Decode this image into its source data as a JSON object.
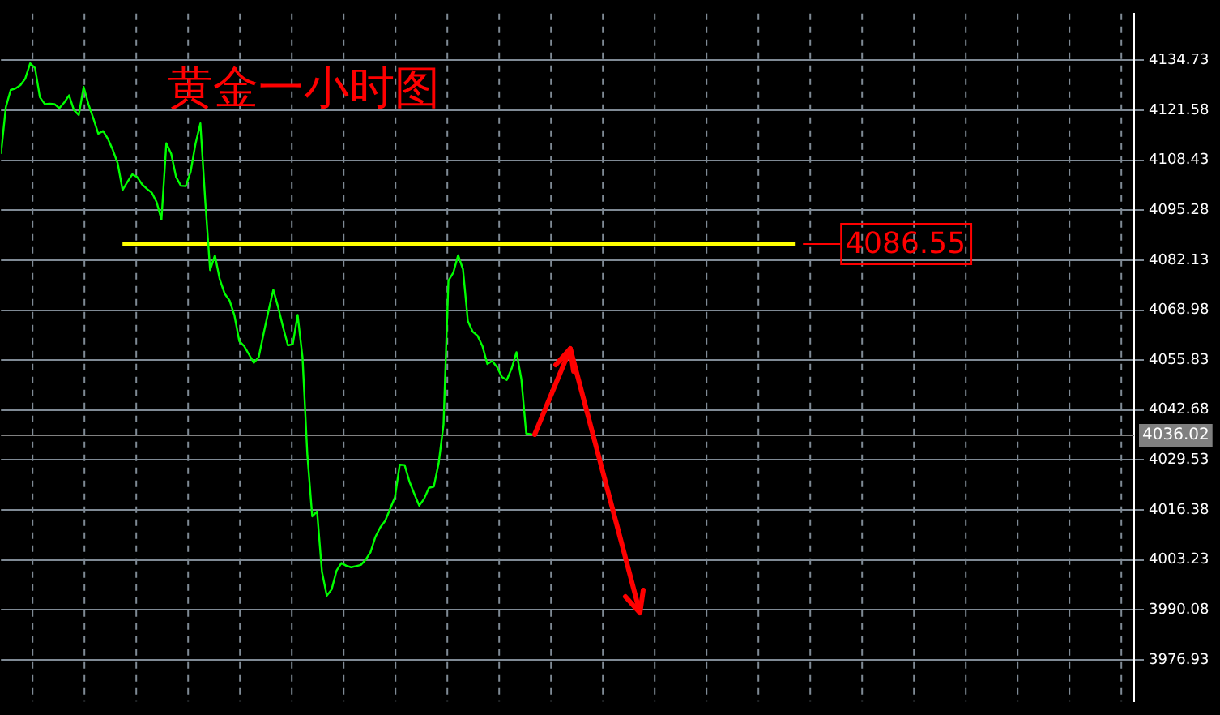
{
  "chart_data": {
    "type": "line",
    "title": "黄金一小时图",
    "categories": [
      null,
      null,
      null,
      null,
      null,
      null,
      null,
      null,
      null,
      null,
      null,
      null,
      null,
      null,
      null,
      null,
      null,
      null,
      null,
      null,
      null,
      null,
      null,
      null,
      null,
      null,
      null,
      null,
      null,
      null,
      null,
      null,
      null,
      null,
      null,
      null,
      null,
      null,
      null,
      null,
      null,
      null,
      null,
      null,
      null,
      null,
      null,
      null,
      null,
      null,
      null,
      null,
      null,
      null,
      null,
      null,
      null,
      null,
      null,
      null,
      null,
      null,
      null,
      null,
      null,
      null,
      null,
      null,
      null,
      null,
      null,
      null,
      null,
      null,
      null,
      null,
      null,
      null,
      null,
      null,
      null,
      null,
      null,
      null,
      null,
      null,
      null,
      null,
      null,
      null,
      null,
      null,
      null,
      null,
      null,
      null,
      null,
      null,
      null,
      null,
      null,
      null,
      null,
      null,
      null,
      null,
      null,
      null,
      null,
      null,
      null,
      null,
      null,
      null,
      null,
      null,
      null,
      null,
      null,
      null,
      null,
      null,
      null,
      null,
      null,
      null,
      null,
      null,
      null,
      null,
      null,
      null,
      null,
      null,
      null,
      null,
      null,
      null,
      null,
      null,
      null,
      null,
      null,
      null,
      null,
      null,
      null,
      null,
      null,
      null,
      null,
      null,
      null,
      null,
      null,
      null,
      null,
      null,
      null,
      null,
      null,
      null,
      null,
      null,
      null,
      null,
      null,
      null,
      null,
      null,
      null,
      null,
      null,
      null,
      null,
      null,
      null,
      null,
      null,
      null,
      null,
      null,
      null,
      null,
      null,
      null,
      null,
      null,
      null,
      null,
      null,
      null,
      null,
      null,
      null,
      null,
      null,
      null,
      null,
      null,
      null,
      null,
      null,
      null,
      null,
      null,
      null,
      null,
      null,
      null,
      null,
      null,
      null,
      null,
      null,
      null,
      null,
      null,
      null,
      null,
      null,
      null,
      null,
      null,
      null,
      null,
      null,
      null,
      null,
      null,
      null,
      null,
      null,
      null
    ],
    "series": [
      {
        "color": "#00ff00",
        "values": [
          4110.1,
          4122.4,
          4126.9,
          4127.3,
          4128.2,
          4129.9,
          4133.9,
          4132.7,
          4125.0,
          4123.2,
          4123.3,
          4123.2,
          4122.1,
          4123.6,
          4125.5,
          4121.6,
          4120.3,
          4127.7,
          4123.1,
          4119.4,
          4115.4,
          4116.1,
          4114.0,
          4111.1,
          4107.6,
          4100.6,
          4102.7,
          4104.7,
          4104.0,
          4102.1,
          4100.9,
          4099.9,
          4097.4,
          4092.8,
          4112.9,
          4110.1,
          4104.0,
          4101.7,
          4101.6,
          4105.4,
          4112.7,
          4118.1,
          4097.8,
          4079.5,
          4083.4,
          4077.0,
          4073.3,
          4071.5,
          4067.6,
          4060.8,
          4059.5,
          4057.3,
          4055.1,
          4056.6,
          4062.8,
          4068.7,
          4074.3,
          4069.7,
          4064.5,
          4059.7,
          4060.0,
          4067.7,
          4056.6,
          4030.8,
          4014.7,
          4016.0,
          4000.1,
          3993.8,
          3995.5,
          4000.4,
          4002.4,
          4001.7,
          4001.3,
          4001.6,
          4001.9,
          4003.3,
          4005.3,
          4009.3,
          4011.8,
          4013.5,
          4016.6,
          4019.7,
          4028.3,
          4028.2,
          4023.8,
          4020.6,
          4017.5,
          4019.3,
          4022.2,
          4022.5,
          4028.7,
          4038.9,
          4076.7,
          4078.8,
          4083.4,
          4079.7,
          4066.1,
          4063.3,
          4062.2,
          4059.5,
          4054.8,
          4055.6,
          4054.0,
          4051.4,
          4050.6,
          4053.6,
          4057.9,
          4050.8,
          4036.5,
          4036.3,
          4036.0,
          null,
          null,
          null,
          null,
          null,
          null,
          null,
          null,
          null,
          null,
          null,
          null,
          null,
          null,
          null,
          null,
          null,
          null,
          null,
          null,
          null,
          null,
          null,
          null,
          null,
          null,
          null,
          null,
          null,
          null,
          null,
          null,
          null,
          null,
          null,
          null,
          null,
          null,
          null,
          null,
          null,
          null,
          null,
          null,
          null,
          null,
          null,
          null,
          null,
          null,
          null,
          null,
          null,
          null,
          null,
          null,
          null,
          null,
          null,
          null,
          null,
          null,
          null,
          null,
          null,
          null,
          null,
          null,
          null,
          null,
          null,
          null,
          null,
          null,
          null,
          null,
          null,
          null,
          null,
          null,
          null,
          null,
          null,
          null,
          null,
          null,
          null,
          null,
          null,
          null,
          null,
          null,
          null,
          null,
          null,
          null,
          null,
          null,
          null,
          null,
          null,
          null,
          null,
          null,
          null,
          null,
          null,
          null,
          null,
          null,
          null,
          null,
          null,
          null,
          null,
          null,
          null,
          null,
          null,
          null,
          null,
          null,
          null
        ]
      }
    ],
    "ylim": [
      3966,
      4147
    ],
    "yticks": [
      3976.93,
      3990.08,
      4003.23,
      4016.38,
      4029.53,
      4042.68,
      4055.83,
      4068.98,
      4082.13,
      4095.28,
      4108.43,
      4121.58,
      4134.73
    ],
    "ref_lines": [
      {
        "axis": "y",
        "value": 4086.55,
        "label": "4086.55",
        "color": "#ffff00"
      },
      {
        "axis": "y",
        "value": 4036.02,
        "label": "4036.02",
        "color": "#808080"
      }
    ],
    "grid": true,
    "marker": "none",
    "line_style": "solid",
    "tick_labels": "y"
  }
}
